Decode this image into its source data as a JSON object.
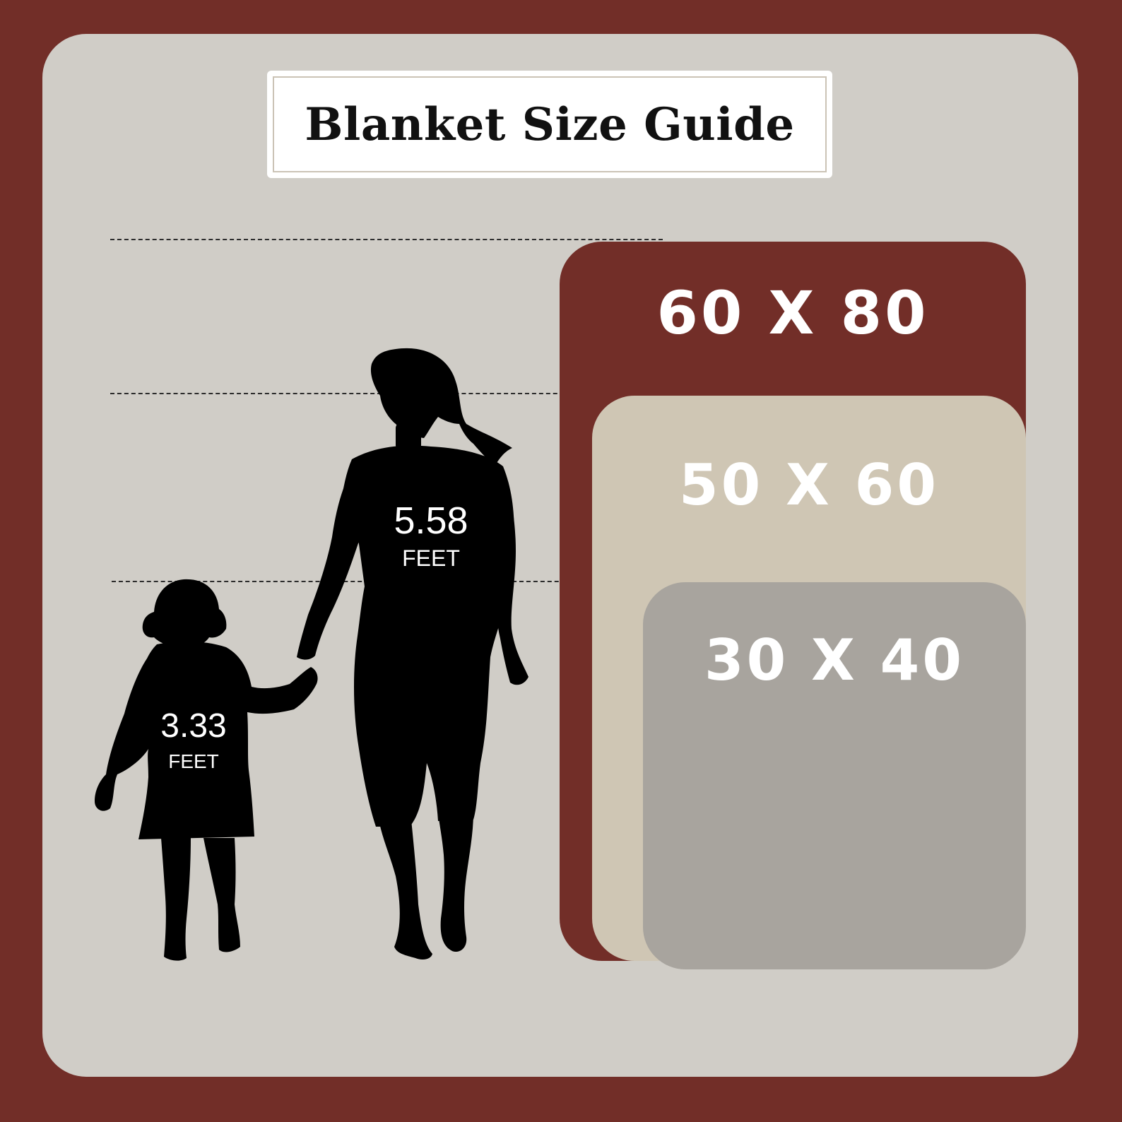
{
  "title": "Blanket Size Guide",
  "sizes": [
    {
      "label": "60 X 80",
      "color": "#722e28"
    },
    {
      "label": "50 X 60",
      "color": "#cfc6b4"
    },
    {
      "label": "30 X 40",
      "color": "#a8a49e"
    }
  ],
  "figures": {
    "adult": {
      "value": "5.58",
      "unit": "FEET"
    },
    "child": {
      "value": "3.33",
      "unit": "FEET"
    }
  },
  "colors": {
    "frame": "#722e28",
    "panel": "#d0cdc7",
    "silhouette": "#000000"
  }
}
